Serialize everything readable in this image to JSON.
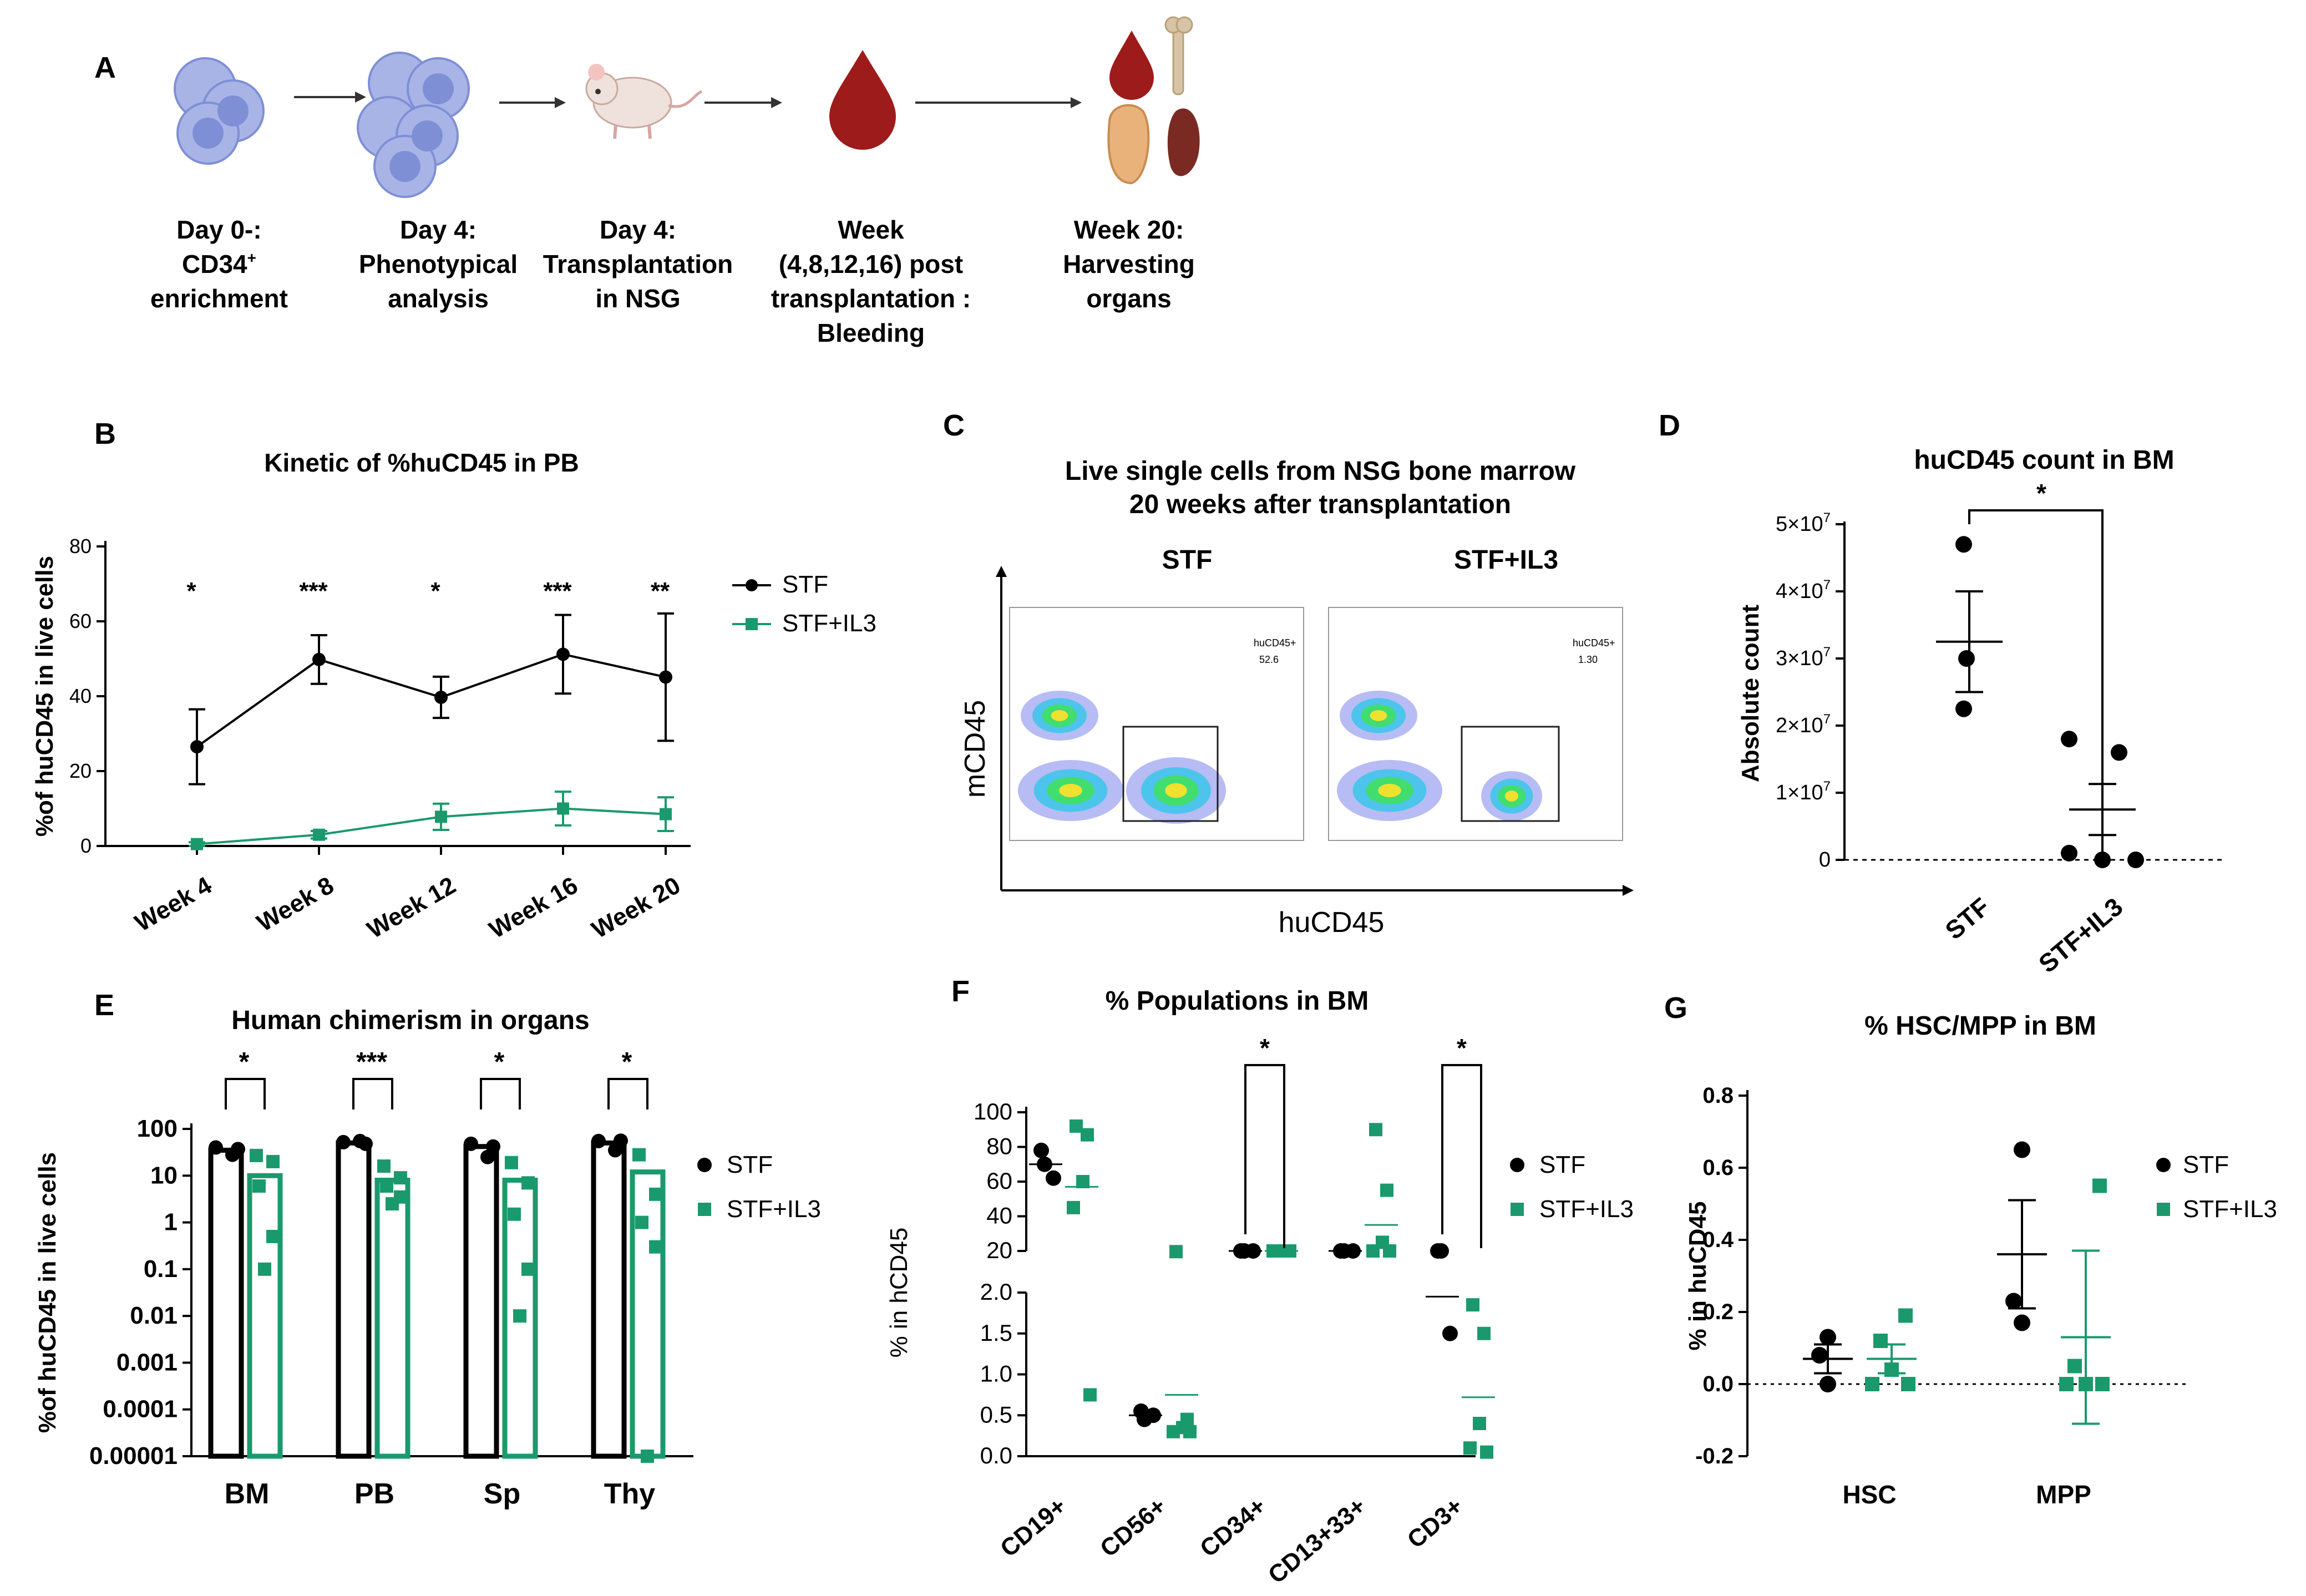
{
  "colors": {
    "stf": "#000000",
    "il3": "#1a9a6c",
    "cell": "#a8b4e6",
    "cellCore": "#7f8fd6",
    "blood": "#9e1b1b",
    "bone": "#d7c3a5",
    "liver": "#e8b27a",
    "spleen": "#7a2a22",
    "mouse": "#e9d9d2"
  },
  "panelA": {
    "letter": "A",
    "steps": [
      {
        "icon": "cell-icon",
        "lines": [
          "Day 0-:",
          "CD34",
          "enrichment"
        ],
        "sup": "+"
      },
      {
        "icon": "cells-cluster-icon",
        "lines": [
          "Day 4:",
          "Phenotypical",
          "analysis"
        ]
      },
      {
        "icon": "mouse-icon",
        "lines": [
          "Day 4:",
          "Transplantation",
          "in NSG"
        ]
      },
      {
        "icon": "blood-drop-icon",
        "lines": [
          "Week",
          "(4,8,12,16) post",
          "transplantation :",
          "Bleeding"
        ]
      },
      {
        "icon": "organs-icon",
        "lines": [
          "Week 20:",
          "Harvesting",
          "organs"
        ]
      }
    ]
  },
  "chart_data": [
    {
      "panel": "B",
      "type": "line",
      "title": "Kinetic of %huCD45 in PB",
      "ylabel": "%of huCD45 in live cells",
      "ylim": [
        0,
        80
      ],
      "yticks": [
        0,
        20,
        40,
        60,
        80
      ],
      "categories": [
        "Week 4",
        "Week 8",
        "Week 12",
        "Week 16",
        "Week 20"
      ],
      "series": [
        {
          "name": "STF",
          "values": [
            26.5,
            49.8,
            39.7,
            51.2,
            45.1
          ],
          "err": [
            10,
            6.5,
            5.5,
            10.5,
            17
          ]
        },
        {
          "name": "STF+IL3",
          "values": [
            0.5,
            3,
            7.8,
            10,
            8.5
          ],
          "err": [
            0.5,
            1,
            3.5,
            4.5,
            4.5
          ]
        }
      ],
      "significance": [
        "*",
        "***",
        "*",
        "***",
        "**"
      ],
      "legend": "right"
    },
    {
      "panel": "C",
      "type": "flow-cytometry",
      "title": [
        "Live single cells from NSG bone marrow",
        "20 weeks after transplantation"
      ],
      "xlabel": "huCD45",
      "ylabel": "mCD45",
      "plots": [
        {
          "name": "STF",
          "gate_label": "huCD45+",
          "gate_value": "52.6"
        },
        {
          "name": "STF+IL3",
          "gate_label": "huCD45+",
          "gate_value": "1.30"
        }
      ]
    },
    {
      "panel": "D",
      "type": "scatter",
      "title": "huCD45 count in BM",
      "ylabel": "Absolute count",
      "ylim": [
        0,
        50000000
      ],
      "ytick_labels": [
        "0",
        "1×10",
        "2×10",
        "3×10",
        "4×10",
        "5×10"
      ],
      "ytick_exp": "7",
      "categories": [
        "STF",
        "STF+IL3"
      ],
      "groups": [
        {
          "name": "STF",
          "points": [
            47000000,
            30000000,
            22500000
          ],
          "mean": 32500000,
          "sem": 7500000
        },
        {
          "name": "STF+IL3",
          "points": [
            18000000,
            16000000,
            1000000,
            0,
            0
          ],
          "mean": 7500000,
          "sem": 3800000
        }
      ],
      "significance": "*"
    },
    {
      "panel": "E",
      "type": "bar",
      "title": "Human chimerism in organs",
      "ylabel": "%of huCD45 in live cells",
      "yscale": "log",
      "ytick_labels": [
        "0.00001",
        "0.0001",
        "0.001",
        "0.01",
        "0.1",
        "1",
        "10",
        "100"
      ],
      "categories": [
        "BM",
        "PB",
        "Sp",
        "Thy"
      ],
      "series": [
        {
          "name": "STF",
          "values": [
            35,
            50,
            42,
            50
          ],
          "points": [
            [
              40,
              28,
              37
            ],
            [
              52,
              55,
              48
            ],
            [
              48,
              25,
              42
            ],
            [
              55,
              35,
              56
            ]
          ]
        },
        {
          "name": "STF+IL3",
          "values": [
            10,
            8,
            8,
            12
          ],
          "points": [
            [
              27,
              20,
              6,
              0.5,
              0.1
            ],
            [
              16,
              9,
              6,
              3.5,
              2.5
            ],
            [
              19,
              7,
              1.5,
              0.1,
              0.01
            ],
            [
              28,
              4,
              1,
              0.3,
              1e-05
            ]
          ]
        }
      ],
      "significance": [
        "*",
        "***",
        "*",
        "*"
      ],
      "legend": "right"
    },
    {
      "panel": "F",
      "type": "scatter",
      "title": "%  Populations in BM",
      "ylabel": "% in hCD45",
      "ytick_upper": [
        "20",
        "40",
        "60",
        "80",
        "100"
      ],
      "ytick_lower": [
        "0.0",
        "0.5",
        "1.0",
        "1.5",
        "2.0"
      ],
      "categories": [
        "CD19+",
        "CD56+",
        "CD34+",
        "CD13+33+",
        "CD3+"
      ],
      "series": [
        {
          "name": "STF",
          "points": [
            [
              78,
              70,
              62
            ],
            [
              0.55,
              0.45,
              0.5
            ],
            [
              10,
              9.5,
              9
            ],
            [
              17,
              14,
              11
            ],
            [
              7,
              5,
              1.5
            ]
          ],
          "mean": [
            70,
            0.5,
            9.5,
            14,
            1.95
          ]
        },
        {
          "name": "STF+IL3",
          "points": [
            [
              92,
              87,
              60,
              45,
              0.75
            ],
            [
              2.5,
              0.45,
              0.35,
              0.3,
              0.3
            ],
            [
              9,
              8.5,
              8,
              7.5,
              7
            ],
            [
              90,
              55,
              25,
              16,
              8
            ],
            [
              1.85,
              1.5,
              0.4,
              0.1,
              0.05
            ]
          ],
          "mean": [
            57,
            0.75,
            7.8,
            35,
            0.72
          ]
        }
      ],
      "significance": [
        "",
        "",
        "*",
        "",
        "*"
      ],
      "legend": "right"
    },
    {
      "panel": "G",
      "type": "scatter",
      "title": "% HSC/MPP in BM",
      "ylabel": "% in huCD45",
      "ylim": [
        -0.2,
        0.8
      ],
      "yticks": [
        "-0.2",
        "0.0",
        "0.2",
        "0.4",
        "0.6",
        "0.8"
      ],
      "categories": [
        "HSC",
        "MPP"
      ],
      "series": [
        {
          "name": "STF",
          "points": [
            [
              0.13,
              0.08,
              0.0
            ],
            [
              0.65,
              0.23,
              0.17
            ]
          ],
          "mean": [
            0.07,
            0.36
          ],
          "sem": [
            0.04,
            0.15
          ]
        },
        {
          "name": "STF+IL3",
          "points": [
            [
              0.19,
              0.12,
              0.04,
              0.0,
              0.0
            ],
            [
              0.55,
              0.05,
              0.0,
              0.0,
              0.0
            ]
          ],
          "mean": [
            0.07,
            0.13
          ],
          "sem": [
            0.04,
            0.24
          ]
        }
      ],
      "legend": "right"
    }
  ]
}
